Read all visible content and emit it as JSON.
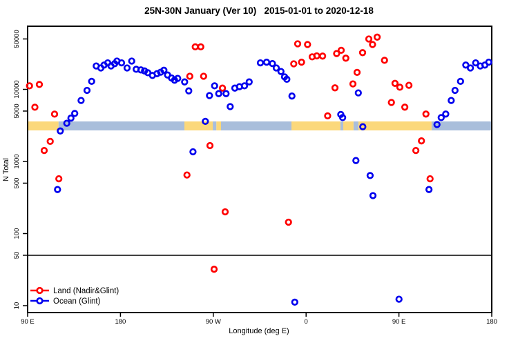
{
  "chart_data": {
    "type": "scatter",
    "title": "25N-30N January (Ver 10)   2015-01-01 to 2020-12-18",
    "xlabel": "Longitude (deg E)",
    "ylabel": "N Total",
    "x_axis": {
      "range_deg": [
        90,
        540
      ],
      "ticks": [
        {
          "deg": 90,
          "label": "90 E"
        },
        {
          "deg": 180,
          "label": "180"
        },
        {
          "deg": 270,
          "label": "90 W"
        },
        {
          "deg": 360,
          "label": "0"
        },
        {
          "deg": 450,
          "label": "90 E"
        },
        {
          "deg": 540,
          "label": "180"
        }
      ]
    },
    "y_axis": {
      "scale": "log",
      "ticks": [
        10,
        50,
        100,
        500,
        1000,
        5000,
        10000,
        50000
      ],
      "tick_labels": [
        "10",
        "50",
        "100",
        "500",
        "1000",
        "5000",
        "10000",
        "50000"
      ],
      "range": [
        10,
        74000
      ]
    },
    "reference_line": {
      "value": 50,
      "color": "#000000"
    },
    "surface_band": {
      "description": "land/ocean mask strip at N ~3000",
      "land_color": "#FBD87B",
      "ocean_color": "#A9BEDB",
      "segments": [
        {
          "from": 90,
          "to": 120,
          "surface": "land"
        },
        {
          "from": 120,
          "to": 242,
          "surface": "ocean"
        },
        {
          "from": 242,
          "to": 269.5,
          "surface": "land"
        },
        {
          "from": 269.5,
          "to": 273,
          "surface": "ocean"
        },
        {
          "from": 273,
          "to": 277.5,
          "surface": "land"
        },
        {
          "from": 277.5,
          "to": 345.8,
          "surface": "ocean"
        },
        {
          "from": 345.8,
          "to": 393.3,
          "surface": "land"
        },
        {
          "from": 393.3,
          "to": 396,
          "surface": "ocean"
        },
        {
          "from": 396,
          "to": 406,
          "surface": "land"
        },
        {
          "from": 406,
          "to": 410.7,
          "surface": "ocean"
        },
        {
          "from": 410.7,
          "to": 481.7,
          "surface": "land"
        },
        {
          "from": 481.7,
          "to": 540,
          "surface": "ocean"
        }
      ]
    },
    "series": [
      {
        "name": "Land (Nadir&Glint)",
        "id": "land",
        "color": "#FF0000",
        "points": [
          [
            91.8,
            11200
          ],
          [
            97,
            5650
          ],
          [
            101.4,
            11700
          ],
          [
            106.1,
            1420
          ],
          [
            111.9,
            1900
          ],
          [
            116.1,
            4530
          ],
          [
            120.3,
            575
          ],
          [
            244.5,
            650
          ],
          [
            247.2,
            15200
          ],
          [
            252.5,
            38900
          ],
          [
            257.9,
            38900
          ],
          [
            260.6,
            15200
          ],
          [
            266.8,
            1660
          ],
          [
            270.8,
            32
          ],
          [
            278.9,
            10400
          ],
          [
            281.5,
            200
          ],
          [
            342.9,
            144
          ],
          [
            348,
            22600
          ],
          [
            351.8,
            42800
          ],
          [
            355.6,
            23800
          ],
          [
            361.4,
            41900
          ],
          [
            365.9,
            28200
          ],
          [
            370.4,
            29100
          ],
          [
            376,
            28900
          ],
          [
            380.9,
            4290
          ],
          [
            388,
            10500
          ],
          [
            389.6,
            31400
          ],
          [
            394,
            34800
          ],
          [
            398.5,
            27100
          ],
          [
            405.4,
            11900
          ],
          [
            409.4,
            17200
          ],
          [
            414.8,
            32300
          ],
          [
            420.8,
            50000
          ],
          [
            424.4,
            41900
          ],
          [
            428.9,
            53000
          ],
          [
            436,
            25300
          ],
          [
            442.7,
            6580
          ],
          [
            446.2,
            12100
          ],
          [
            450.9,
            10700
          ],
          [
            455.7,
            5660
          ],
          [
            459.7,
            11400
          ],
          [
            466.4,
            1420
          ],
          [
            471.8,
            1930
          ],
          [
            476.2,
            4540
          ],
          [
            480.2,
            575
          ]
        ]
      },
      {
        "name": "Ocean (Glint)",
        "id": "ocean",
        "color": "#0202EE",
        "points": [
          [
            119,
            408
          ],
          [
            121.7,
            2650
          ],
          [
            128,
            3390
          ],
          [
            132,
            3990
          ],
          [
            135.7,
            4630
          ],
          [
            141.8,
            7010
          ],
          [
            147.6,
            9670
          ],
          [
            152.1,
            12900
          ],
          [
            156.5,
            21100
          ],
          [
            161,
            19800
          ],
          [
            164.1,
            21700
          ],
          [
            167.7,
            23300
          ],
          [
            170.8,
            21100
          ],
          [
            174.4,
            22700
          ],
          [
            176.6,
            24700
          ],
          [
            181.1,
            23300
          ],
          [
            186.4,
            19800
          ],
          [
            190.9,
            24700
          ],
          [
            195.3,
            19000
          ],
          [
            199.8,
            18600
          ],
          [
            203.4,
            18000
          ],
          [
            206.5,
            17000
          ],
          [
            211,
            15600
          ],
          [
            215.4,
            16500
          ],
          [
            219,
            17300
          ],
          [
            222.1,
            18400
          ],
          [
            225.7,
            15800
          ],
          [
            229.5,
            14400
          ],
          [
            232.4,
            13400
          ],
          [
            235.5,
            14200
          ],
          [
            242.2,
            12700
          ],
          [
            246.2,
            9530
          ],
          [
            250.3,
            1360
          ],
          [
            262.3,
            3600
          ],
          [
            266.3,
            8200
          ],
          [
            271.3,
            11200
          ],
          [
            275.3,
            8730
          ],
          [
            282.4,
            8730
          ],
          [
            286.4,
            5760
          ],
          [
            290.9,
            10400
          ],
          [
            295.4,
            10900
          ],
          [
            300.3,
            11200
          ],
          [
            304.8,
            12700
          ],
          [
            315.7,
            23300
          ],
          [
            321.7,
            23800
          ],
          [
            327.3,
            22800
          ],
          [
            331.1,
            19800
          ],
          [
            335.6,
            17700
          ],
          [
            339.1,
            14900
          ],
          [
            341.3,
            13800
          ],
          [
            346.3,
            8080
          ],
          [
            349,
            11.2
          ],
          [
            393.6,
            4480
          ],
          [
            395.4,
            4060
          ],
          [
            408.3,
            1030
          ],
          [
            410.6,
            8930
          ],
          [
            415,
            3030
          ],
          [
            422.1,
            638
          ],
          [
            424.8,
            336
          ],
          [
            450.1,
            12.3
          ],
          [
            479.1,
            408
          ],
          [
            486.9,
            3250
          ],
          [
            491,
            4060
          ],
          [
            495.4,
            4540
          ],
          [
            500.7,
            7010
          ],
          [
            504.4,
            9670
          ],
          [
            509.7,
            12900
          ],
          [
            514.8,
            21700
          ],
          [
            519.3,
            19800
          ],
          [
            524.4,
            23300
          ],
          [
            528.9,
            21100
          ],
          [
            533.3,
            21700
          ],
          [
            537.1,
            23800
          ]
        ]
      }
    ],
    "legend": {
      "position": "bottom-left",
      "items": [
        "Land (Nadir&Glint)",
        "Ocean (Glint)"
      ]
    }
  }
}
